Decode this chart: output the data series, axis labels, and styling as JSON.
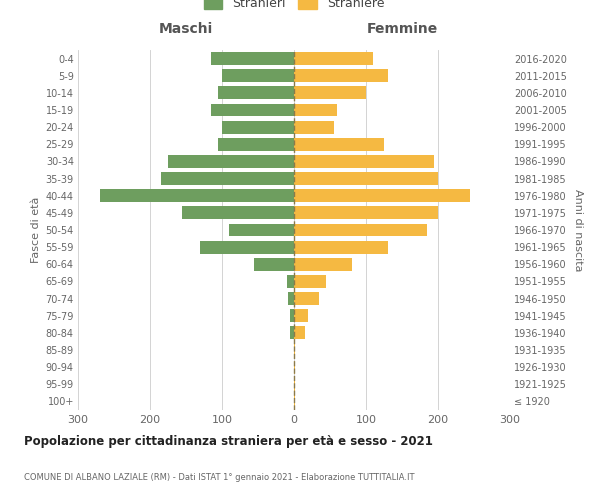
{
  "age_groups": [
    "100+",
    "95-99",
    "90-94",
    "85-89",
    "80-84",
    "75-79",
    "70-74",
    "65-69",
    "60-64",
    "55-59",
    "50-54",
    "45-49",
    "40-44",
    "35-39",
    "30-34",
    "25-29",
    "20-24",
    "15-19",
    "10-14",
    "5-9",
    "0-4"
  ],
  "birth_years": [
    "≤ 1920",
    "1921-1925",
    "1926-1930",
    "1931-1935",
    "1936-1940",
    "1941-1945",
    "1946-1950",
    "1951-1955",
    "1956-1960",
    "1961-1965",
    "1966-1970",
    "1971-1975",
    "1976-1980",
    "1981-1985",
    "1986-1990",
    "1991-1995",
    "1996-2000",
    "2001-2005",
    "2006-2010",
    "2011-2015",
    "2016-2020"
  ],
  "maschi": [
    0,
    0,
    0,
    0,
    5,
    5,
    8,
    10,
    55,
    130,
    90,
    155,
    270,
    185,
    175,
    105,
    100,
    115,
    105,
    100,
    115
  ],
  "femmine": [
    2,
    2,
    2,
    2,
    15,
    20,
    35,
    45,
    80,
    130,
    185,
    200,
    245,
    200,
    195,
    125,
    55,
    60,
    100,
    130,
    110
  ],
  "color_maschi": "#6e9e5f",
  "color_femmine": "#f5b942",
  "color_dashed": "#8a7a4a",
  "title": "Popolazione per cittadinanza straniera per età e sesso - 2021",
  "subtitle": "COMUNE DI ALBANO LAZIALE (RM) - Dati ISTAT 1° gennaio 2021 - Elaborazione TUTTITALIA.IT",
  "label_maschi": "Stranieri",
  "label_femmine": "Straniere",
  "header_left": "Maschi",
  "header_right": "Femmine",
  "ylabel_left": "Fasce di età",
  "ylabel_right": "Anni di nascita",
  "xlim": 300,
  "background_color": "#ffffff",
  "grid_color": "#cccccc"
}
